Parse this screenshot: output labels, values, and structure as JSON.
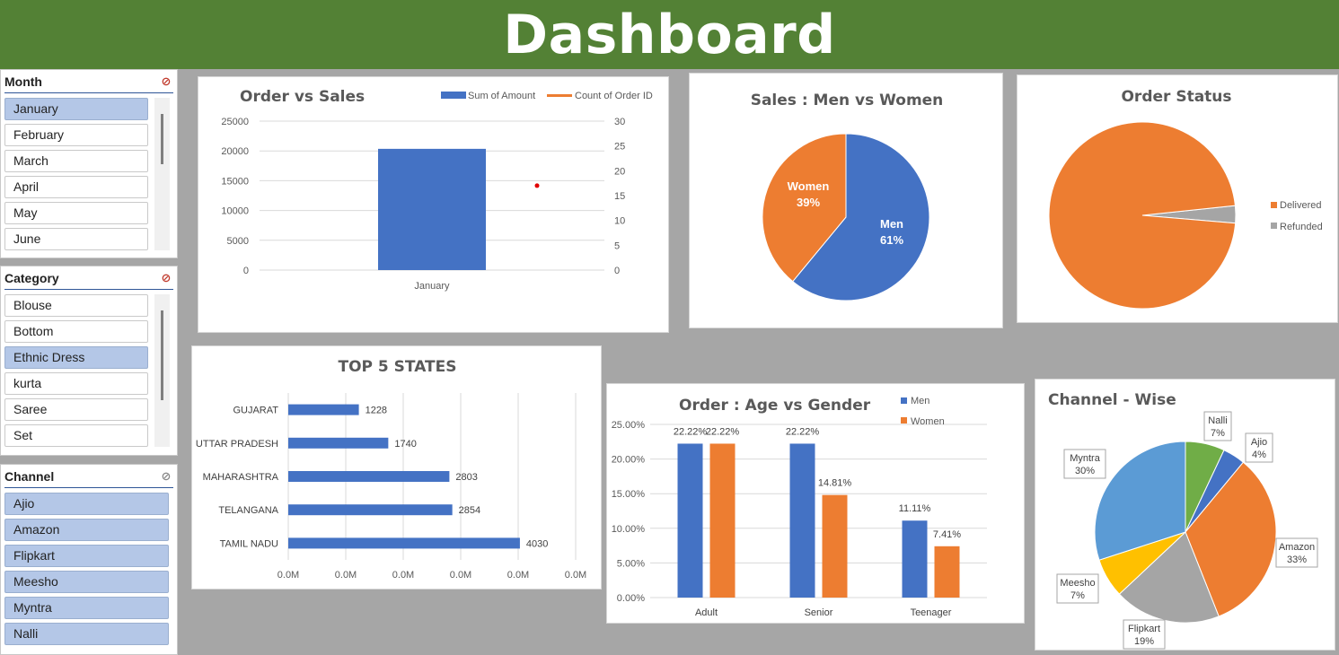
{
  "header": {
    "title": "Dashboard"
  },
  "slicers": {
    "month": {
      "title": "Month",
      "items": [
        "January",
        "February",
        "March",
        "April",
        "May",
        "June"
      ],
      "selected": [
        "January"
      ]
    },
    "category": {
      "title": "Category",
      "items": [
        "Blouse",
        "Bottom",
        "Ethnic Dress",
        "kurta",
        "Saree",
        "Set"
      ],
      "selected": [
        "Ethnic Dress"
      ]
    },
    "channel": {
      "title": "Channel",
      "items": [
        "Ajio",
        "Amazon",
        "Flipkart",
        "Meesho",
        "Myntra",
        "Nalli"
      ],
      "selected": [
        "Ajio",
        "Amazon",
        "Flipkart",
        "Meesho",
        "Myntra",
        "Nalli"
      ]
    }
  },
  "colors": {
    "header": "#538135",
    "blue": "#4472c4",
    "orange": "#ed7d31",
    "gray": "#a5a5a5",
    "yellow": "#ffc000",
    "lightblue": "#5b9bd5",
    "green": "#70ad47",
    "selected": "#b4c7e7"
  },
  "icons": {
    "filter_clear": "filter-clear-icon"
  },
  "chart_data": [
    {
      "id": "order_vs_sales",
      "type": "bar",
      "title": "Order vs Sales",
      "categories": [
        "January"
      ],
      "series": [
        {
          "name": "Sum of Amount",
          "values": [
            20350
          ],
          "axis": "left"
        },
        {
          "name": "Count of Order ID",
          "values": [
            17
          ],
          "axis": "right"
        }
      ],
      "y_ticks": [
        "0",
        "5000",
        "10000",
        "15000",
        "20000",
        "25000"
      ],
      "y2_ticks": [
        "0",
        "5",
        "10",
        "15",
        "20",
        "25",
        "30"
      ],
      "ylim": [
        0,
        25000
      ],
      "y2lim": [
        0,
        30
      ],
      "legend": "top-right"
    },
    {
      "id": "sales_gender",
      "type": "pie",
      "title": "Sales : Men vs Women",
      "labels": [
        "Men",
        "Women"
      ],
      "values": [
        61,
        39
      ],
      "display": [
        "61%",
        "39%"
      ]
    },
    {
      "id": "order_status",
      "type": "pie",
      "title": "Order Status",
      "labels": [
        "Delivered",
        "Refunded"
      ],
      "values": [
        97,
        3
      ],
      "legend": "right"
    },
    {
      "id": "top_states",
      "type": "bar",
      "orientation": "horizontal",
      "title": "TOP 5 STATES",
      "categories": [
        "GUJARAT",
        "UTTAR PRADESH",
        "MAHARASHTRA",
        "TELANGANA",
        "TAMIL NADU"
      ],
      "values": [
        1228,
        1740,
        2803,
        2854,
        4030
      ],
      "x_ticks": [
        "0.0M",
        "0.0M",
        "0.0M",
        "0.0M",
        "0.0M",
        "0.0M"
      ],
      "xlim": [
        0,
        5000
      ]
    },
    {
      "id": "age_gender",
      "type": "bar",
      "title": "Order : Age vs Gender",
      "categories": [
        "Adult",
        "Senior",
        "Teenager"
      ],
      "series": [
        {
          "name": "Men",
          "values": [
            22.22,
            22.22,
            11.11
          ],
          "labels": [
            "22.22%",
            "22.22%",
            "11.11%"
          ]
        },
        {
          "name": "Women",
          "values": [
            22.22,
            14.81,
            7.41
          ],
          "labels": [
            "22.22%",
            "14.81%",
            "7.41%"
          ]
        }
      ],
      "y_ticks": [
        "0.00%",
        "5.00%",
        "10.00%",
        "15.00%",
        "20.00%",
        "25.00%"
      ],
      "ylim": [
        0,
        25
      ],
      "legend": "top-right"
    },
    {
      "id": "channel_wise",
      "type": "pie",
      "title": "Channel - Wise",
      "labels": [
        "Nalli",
        "Ajio",
        "Amazon",
        "Flipkart",
        "Meesho",
        "Myntra"
      ],
      "values": [
        7,
        4,
        33,
        19,
        7,
        30
      ],
      "display": [
        "7%",
        "4%",
        "33%",
        "19%",
        "7%",
        "30%"
      ]
    }
  ]
}
